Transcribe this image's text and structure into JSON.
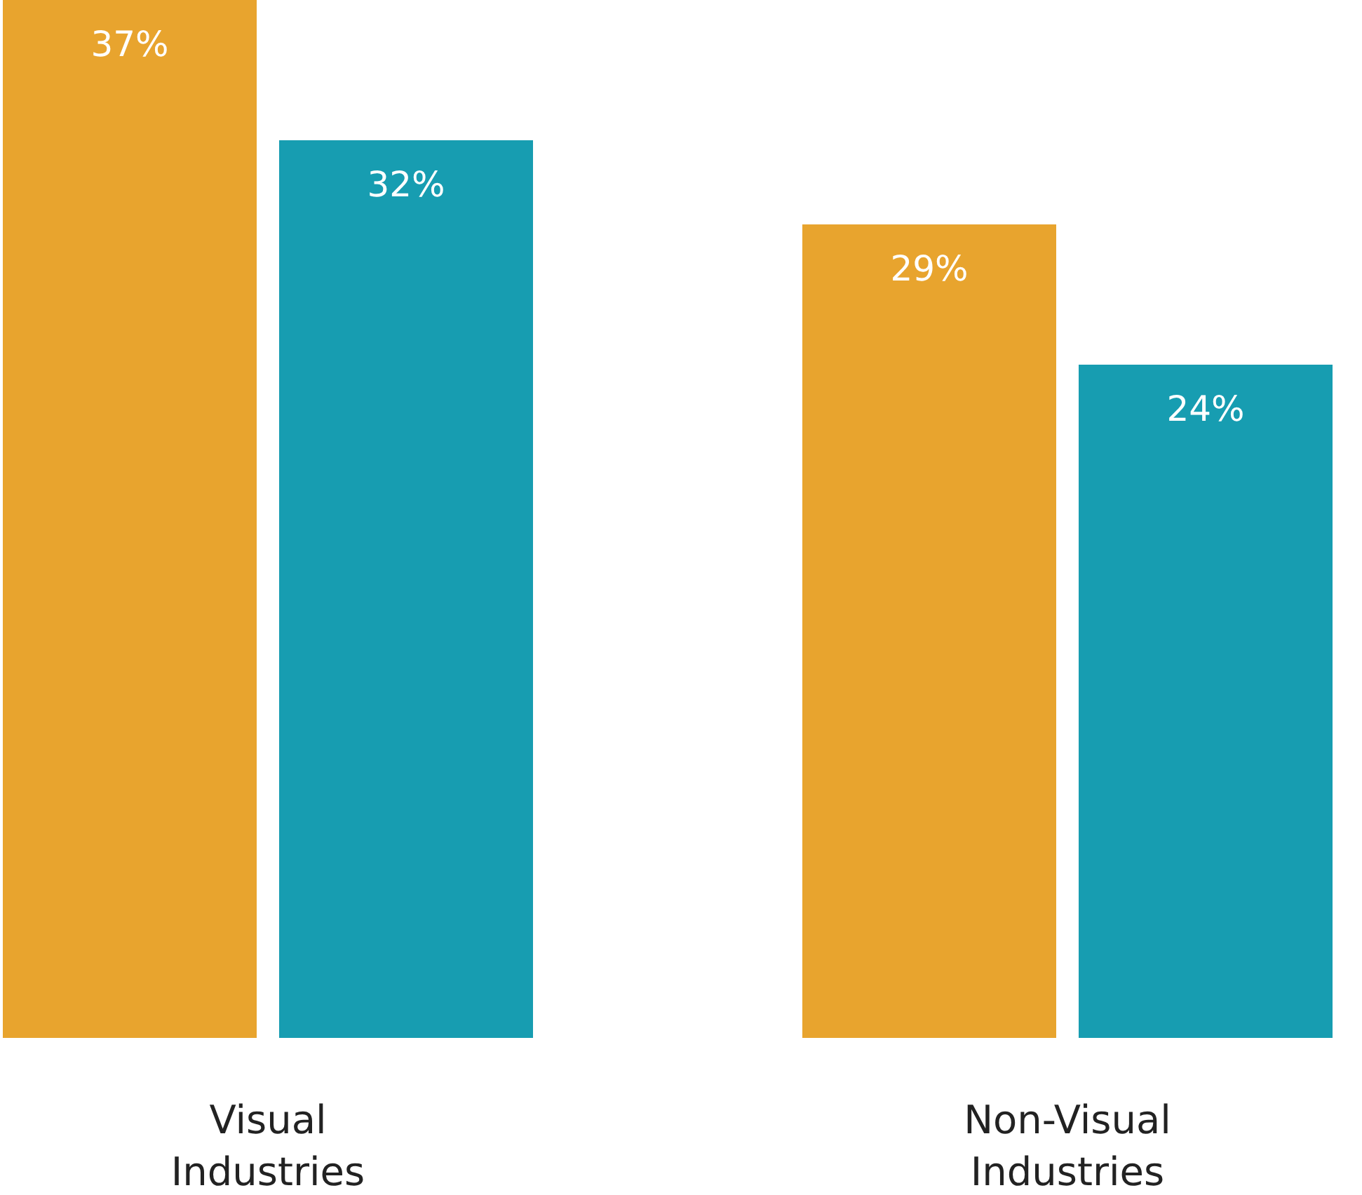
{
  "chart_data": {
    "type": "bar",
    "categories": [
      "Visual Industries",
      "Non-Visual Industries"
    ],
    "series": [
      {
        "color": "#e8a42e",
        "values": [
          37,
          29
        ],
        "value_labels": [
          "37%",
          "29%"
        ]
      },
      {
        "color": "#179db1",
        "values": [
          32,
          24
        ],
        "value_labels": [
          "32%",
          "24%"
        ]
      }
    ]
  }
}
